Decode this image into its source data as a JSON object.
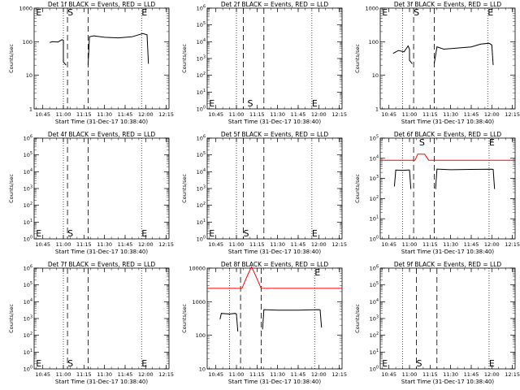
{
  "chart_data": [
    {
      "type": "line",
      "title": "Det 1f BLACK = Events, RED = LLD",
      "xlabel": "Start Time (31-Dec-17 10:38:40)",
      "ylabel": "Counts/sec",
      "yscale": "log",
      "xlim": [
        "10:38:40",
        "12:17:00"
      ],
      "ylim": [
        1,
        1000
      ],
      "x_ticks": [
        "10:45",
        "11:00",
        "11:15",
        "11:30",
        "11:45",
        "12:00",
        "12:15"
      ],
      "y_ticks": [
        "1",
        "10",
        "100",
        "1000"
      ],
      "markers": [
        {
          "label": "E",
          "time": "10:40"
        },
        {
          "label": "S",
          "time": "11:03"
        },
        {
          "label": "E",
          "time": "11:57"
        }
      ],
      "dotted_lines": [
        "11:00",
        "11:57"
      ],
      "dashed_lines": [
        "11:03",
        "11:18"
      ],
      "series": [
        {
          "color": "#000000",
          "x": [
            "10:50",
            "10:52",
            "10:56",
            "10:59",
            "11:00",
            "11:00",
            "11:02"
          ],
          "y": [
            95,
            100,
            98,
            115,
            110,
            25,
            20
          ]
        },
        {
          "color": "#000000",
          "x": [
            "11:18",
            "11:19",
            "11:22",
            "11:30",
            "11:40",
            "11:50",
            "11:58",
            "12:01",
            "12:02"
          ],
          "y": [
            20,
            140,
            150,
            135,
            130,
            140,
            175,
            160,
            22
          ]
        }
      ]
    },
    {
      "type": "line",
      "title": "Det 2f BLACK = Events, RED = LLD",
      "xlabel": "Start Time (31-Dec-17 10:38:40)",
      "ylabel": "Counts/sec",
      "yscale": "log",
      "xlim": [
        "10:38:40",
        "12:17:00"
      ],
      "ylim": [
        1,
        1000000
      ],
      "x_ticks": [
        "10:45",
        "11:00",
        "11:15",
        "11:30",
        "11:45",
        "12:00",
        "12:15"
      ],
      "y_ticks": [
        "10^0",
        "10^1",
        "10^2",
        "10^3",
        "10^4",
        "10^5",
        "10^6"
      ],
      "markers": [
        {
          "label": "E",
          "time": "10:40"
        },
        {
          "label": "S",
          "time": "11:08"
        },
        {
          "label": "E",
          "time": "11:55"
        }
      ],
      "dotted_lines": [
        "11:00",
        "11:55"
      ],
      "dashed_lines": [
        "11:05",
        "11:20"
      ],
      "series": []
    },
    {
      "type": "line",
      "title": "Det 3f BLACK = Events, RED = LLD",
      "xlabel": "Start Time (31-Dec-17 10:38:40)",
      "ylabel": "Counts/sec",
      "yscale": "log",
      "xlim": [
        "10:38:40",
        "12:17:00"
      ],
      "ylim": [
        1,
        1000
      ],
      "x_ticks": [
        "10:45",
        "11:00",
        "11:15",
        "11:30",
        "11:45",
        "12:00",
        "12:15"
      ],
      "y_ticks": [
        "1",
        "10",
        "100",
        "1000"
      ],
      "markers": [
        {
          "label": "E",
          "time": "10:40"
        },
        {
          "label": "S",
          "time": "11:03"
        },
        {
          "label": "E",
          "time": "11:57"
        }
      ],
      "dotted_lines": [
        "10:55",
        "11:57"
      ],
      "dashed_lines": [
        "11:03",
        "11:18"
      ],
      "series": [
        {
          "color": "#000000",
          "x": [
            "10:48",
            "10:52",
            "10:56",
            "10:59",
            "11:00",
            "11:00",
            "11:02"
          ],
          "y": [
            45,
            55,
            50,
            75,
            60,
            28,
            22
          ]
        },
        {
          "color": "#000000",
          "x": [
            "11:18",
            "11:20",
            "11:25",
            "11:35",
            "11:45",
            "11:52",
            "11:58",
            "12:00",
            "12:01"
          ],
          "y": [
            22,
            70,
            60,
            65,
            70,
            85,
            90,
            80,
            20
          ]
        }
      ]
    },
    {
      "type": "line",
      "title": "Det 4f BLACK = Events, RED = LLD",
      "xlabel": "Start Time (31-Dec-17 10:38:40)",
      "ylabel": "Counts/sec",
      "yscale": "log",
      "xlim": [
        "10:38:40",
        "12:17:00"
      ],
      "ylim": [
        1,
        1000000
      ],
      "x_ticks": [
        "10:45",
        "11:00",
        "11:15",
        "11:30",
        "11:45",
        "12:00",
        "12:15"
      ],
      "y_ticks": [
        "10^0",
        "10^1",
        "10^2",
        "10^3",
        "10^4",
        "10^5",
        "10^6"
      ],
      "markers": [
        {
          "label": "E",
          "time": "10:40"
        },
        {
          "label": "S",
          "time": "11:03"
        },
        {
          "label": "E",
          "time": "11:57"
        }
      ],
      "dotted_lines": [
        "11:00",
        "11:57"
      ],
      "dashed_lines": [
        "11:03",
        "11:18"
      ],
      "series": []
    },
    {
      "type": "line",
      "title": "Det 5f BLACK = Events, RED = LLD",
      "xlabel": "Start Time (31-Dec-17 10:38:40)",
      "ylabel": "Counts/sec",
      "yscale": "log",
      "xlim": [
        "10:38:40",
        "12:17:00"
      ],
      "ylim": [
        1,
        1000000
      ],
      "x_ticks": [
        "10:45",
        "11:00",
        "11:15",
        "11:30",
        "11:45",
        "12:00",
        "12:15"
      ],
      "y_ticks": [
        "10^0",
        "10^1",
        "10^2",
        "10^3",
        "10^4",
        "10^5",
        "10^6"
      ],
      "markers": [
        {
          "label": "E",
          "time": "10:40"
        },
        {
          "label": "S",
          "time": "11:05"
        },
        {
          "label": "E",
          "time": "11:55"
        }
      ],
      "dotted_lines": [
        "11:00",
        "11:55"
      ],
      "dashed_lines": [
        "11:05",
        "11:20"
      ],
      "series": []
    },
    {
      "type": "line",
      "title": "Det 6f BLACK = Events, RED = LLD",
      "xlabel": "Start Time (31-Dec-17 10:38:40)",
      "ylabel": "Counts/sec",
      "yscale": "log",
      "xlim": [
        "10:38:40",
        "12:17:00"
      ],
      "ylim": [
        1,
        100000
      ],
      "x_ticks": [
        "10:45",
        "11:00",
        "11:15",
        "11:30",
        "11:45",
        "12:00",
        "12:15"
      ],
      "y_ticks": [
        "10^0",
        "10^1",
        "10^2",
        "10^3",
        "10^4",
        "10^5"
      ],
      "markers": [
        {
          "label": "S",
          "time": "11:07"
        },
        {
          "label": "E",
          "time": "11:58"
        }
      ],
      "dotted_lines": [
        "10:55",
        "11:58"
      ],
      "dashed_lines": [
        "11:03",
        "11:18"
      ],
      "series": [
        {
          "color": "#ff0000",
          "x": [
            "10:38:40",
            "11:00",
            "11:04",
            "11:06",
            "11:11",
            "11:14",
            "11:18",
            "12:17"
          ],
          "y": [
            8000,
            8000,
            8000,
            16000,
            16000,
            8000,
            8000,
            8000
          ]
        },
        {
          "color": "#000000",
          "x": [
            "10:49",
            "10:50",
            "10:55",
            "10:59",
            "11:00",
            "11:01"
          ],
          "y": [
            400,
            2600,
            2500,
            2600,
            2600,
            300
          ]
        },
        {
          "color": "#000000",
          "x": [
            "11:19",
            "11:20",
            "11:30",
            "11:45",
            "12:00",
            "12:01",
            "12:02"
          ],
          "y": [
            300,
            2900,
            2700,
            2800,
            2850,
            2800,
            300
          ]
        }
      ]
    },
    {
      "type": "line",
      "title": "Det 7f BLACK = Events, RED = LLD",
      "xlabel": "Start Time (31-Dec-17 10:38:40)",
      "ylabel": "Counts/sec",
      "yscale": "log",
      "xlim": [
        "10:38:40",
        "12:17:00"
      ],
      "ylim": [
        1,
        1000000
      ],
      "x_ticks": [
        "10:45",
        "11:00",
        "11:15",
        "11:30",
        "11:45",
        "12:00",
        "12:15"
      ],
      "y_ticks": [
        "10^0",
        "10^1",
        "10^2",
        "10^3",
        "10^4",
        "10^5",
        "10^6"
      ],
      "markers": [
        {
          "label": "E",
          "time": "10:40"
        },
        {
          "label": "S",
          "time": "11:03"
        },
        {
          "label": "E",
          "time": "11:57"
        }
      ],
      "dotted_lines": [
        "11:00",
        "11:57"
      ],
      "dashed_lines": [
        "11:03",
        "11:18"
      ],
      "series": []
    },
    {
      "type": "line",
      "title": "Det 8f BLACK = Events, RED = LLD",
      "xlabel": "Start Time (31-Dec-17 10:38:40)",
      "ylabel": "Counts/sec",
      "yscale": "log",
      "xlim": [
        "10:38:40",
        "12:17:00"
      ],
      "ylim": [
        10,
        10000
      ],
      "x_ticks": [
        "10:45",
        "11:00",
        "11:15",
        "11:30",
        "11:45",
        "12:00",
        "12:15"
      ],
      "y_ticks": [
        "10",
        "100",
        "1000",
        "10000"
      ],
      "markers": [
        {
          "label": "E",
          "time": "11:57"
        }
      ],
      "dotted_lines": [
        "10:55",
        "11:57"
      ],
      "dashed_lines": [
        "11:03",
        "11:18"
      ],
      "series": [
        {
          "color": "#ff0000",
          "x": [
            "10:38:40",
            "11:00",
            "11:04",
            "11:08",
            "11:11",
            "11:14",
            "11:18",
            "12:17"
          ],
          "y": [
            2500,
            2500,
            2500,
            6000,
            11000,
            6000,
            2500,
            2500
          ]
        },
        {
          "color": "#000000",
          "x": [
            "10:48",
            "10:49",
            "10:55",
            "10:59",
            "11:00",
            "11:01"
          ],
          "y": [
            300,
            450,
            430,
            450,
            430,
            130
          ]
        },
        {
          "color": "#000000",
          "x": [
            "11:19",
            "11:20",
            "11:30",
            "11:45",
            "12:00",
            "12:01",
            "12:02"
          ],
          "y": [
            150,
            580,
            560,
            560,
            580,
            570,
            170
          ]
        }
      ]
    },
    {
      "type": "line",
      "title": "Det 9f BLACK = Events, RED = LLD",
      "xlabel": "Start Time (31-Dec-17 10:38:40)",
      "ylabel": "Counts/sec",
      "yscale": "log",
      "xlim": [
        "10:38:40",
        "12:17:00"
      ],
      "ylim": [
        1,
        1000000
      ],
      "x_ticks": [
        "10:45",
        "11:00",
        "11:15",
        "11:30",
        "11:45",
        "12:00",
        "12:15"
      ],
      "y_ticks": [
        "10^0",
        "10^1",
        "10^2",
        "10^3",
        "10^4",
        "10^5",
        "10^6"
      ],
      "markers": [
        {
          "label": "E",
          "time": "10:40"
        },
        {
          "label": "S",
          "time": "11:05"
        },
        {
          "label": "E",
          "time": "11:58"
        }
      ],
      "dotted_lines": [
        "10:55",
        "11:58"
      ],
      "dashed_lines": [
        "11:05",
        "11:20"
      ],
      "series": []
    }
  ]
}
